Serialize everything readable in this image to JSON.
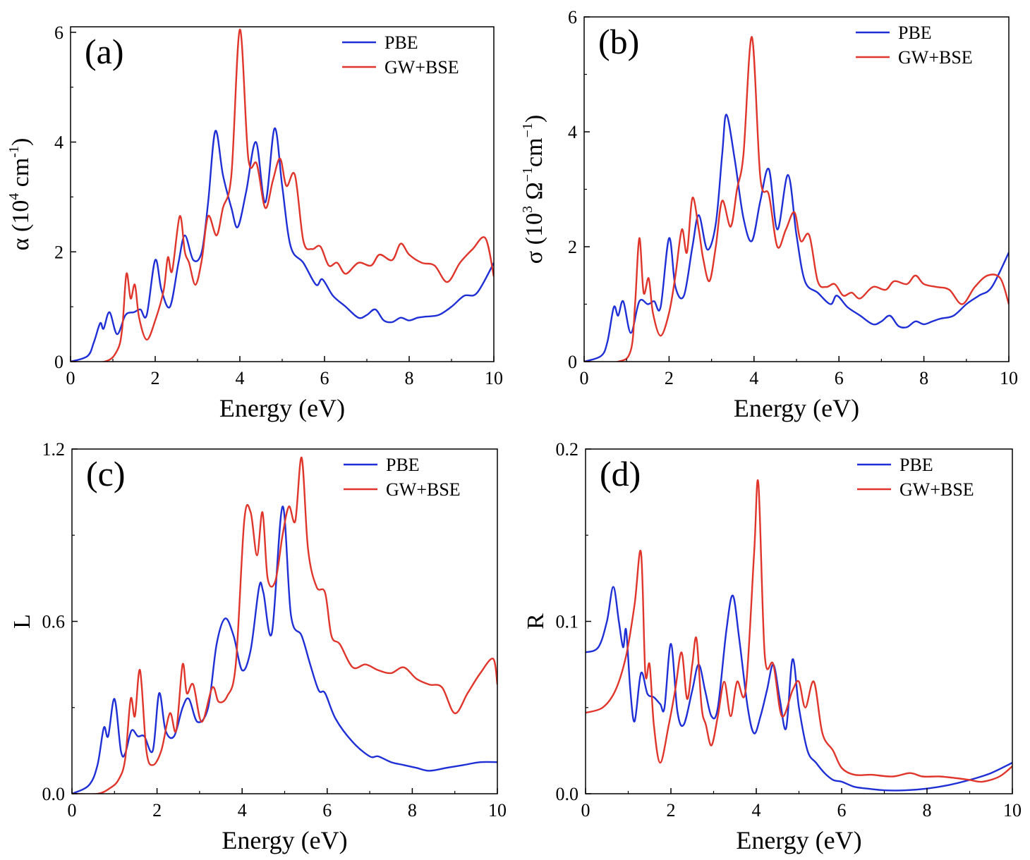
{
  "figure": {
    "x_label": "Energy (eV)"
  },
  "colors": {
    "PBE": "#1f2fd6",
    "GW+BSE": "#e0352b",
    "axis": "#000000"
  },
  "chart_data": [
    {
      "type": "line",
      "panel_label": "(a)",
      "ylabel_text": "α (10",
      "ylabel_sup": "4",
      "ylabel_unit": " cm",
      "ylabel_unit_sup": "-1",
      "ylabel_close": ")",
      "xlim": [
        0,
        10
      ],
      "ylim": [
        0,
        6.1
      ],
      "xticks": [
        0,
        2,
        4,
        6,
        8,
        10
      ],
      "xtick_labels": [
        "0",
        "2",
        "4",
        "6",
        "8",
        "10"
      ],
      "yticks": [
        0,
        2,
        4,
        6
      ],
      "ytick_labels": [
        "0",
        "2",
        "4",
        "6"
      ],
      "legend": [
        "PBE",
        "GW+BSE"
      ],
      "series": [
        {
          "name": "PBE",
          "x": [
            0,
            0.4,
            0.55,
            0.7,
            0.78,
            0.92,
            1.1,
            1.3,
            1.5,
            1.65,
            1.8,
            2.0,
            2.15,
            2.35,
            2.55,
            2.7,
            2.9,
            3.1,
            3.25,
            3.42,
            3.6,
            3.8,
            3.95,
            4.15,
            4.38,
            4.6,
            4.82,
            5.0,
            5.2,
            5.5,
            5.8,
            5.95,
            6.2,
            6.5,
            6.8,
            7.0,
            7.2,
            7.4,
            7.6,
            7.8,
            8.0,
            8.2,
            8.4,
            8.7,
            9.0,
            9.3,
            9.6,
            10.0
          ],
          "values": [
            0,
            0.1,
            0.35,
            0.7,
            0.6,
            0.9,
            0.5,
            0.85,
            0.9,
            0.95,
            0.85,
            1.85,
            1.3,
            1.0,
            1.8,
            2.3,
            1.85,
            2.0,
            2.9,
            4.2,
            3.4,
            2.8,
            2.45,
            3.1,
            4.0,
            2.9,
            4.25,
            3.2,
            2.1,
            1.8,
            1.4,
            1.5,
            1.2,
            1.0,
            0.8,
            0.85,
            0.95,
            0.75,
            0.72,
            0.8,
            0.75,
            0.8,
            0.82,
            0.85,
            1.0,
            1.2,
            1.25,
            1.8
          ]
        },
        {
          "name": "GW+BSE",
          "x": [
            0,
            0.8,
            1.1,
            1.22,
            1.32,
            1.42,
            1.52,
            1.62,
            1.8,
            2.0,
            2.2,
            2.3,
            2.4,
            2.58,
            2.7,
            2.8,
            2.95,
            3.1,
            3.25,
            3.45,
            3.6,
            3.8,
            4.0,
            4.2,
            4.4,
            4.6,
            4.78,
            4.95,
            5.1,
            5.3,
            5.5,
            5.7,
            5.9,
            6.1,
            6.3,
            6.5,
            6.8,
            7.1,
            7.3,
            7.6,
            7.8,
            8.0,
            8.3,
            8.6,
            8.9,
            9.2,
            9.5,
            9.8,
            10.0
          ],
          "values": [
            0,
            0,
            0.2,
            0.6,
            1.6,
            1.15,
            1.4,
            0.8,
            0.4,
            0.75,
            1.3,
            1.9,
            1.65,
            2.65,
            2.0,
            1.8,
            1.4,
            1.85,
            2.65,
            2.3,
            2.8,
            3.4,
            6.05,
            3.7,
            3.6,
            2.8,
            3.3,
            3.7,
            3.2,
            3.4,
            2.2,
            2.05,
            2.1,
            1.75,
            1.8,
            1.6,
            1.8,
            1.75,
            1.95,
            1.85,
            2.15,
            1.95,
            1.8,
            1.75,
            1.45,
            1.8,
            2.05,
            2.25,
            1.55
          ]
        }
      ]
    },
    {
      "type": "line",
      "panel_label": "(b)",
      "ylabel_text": "σ (10",
      "ylabel_sup": "3",
      "ylabel_unit": " Ω",
      "ylabel_unit_sup": "−1",
      "ylabel_unit2": "cm",
      "ylabel_unit2_sup": "−1",
      "ylabel_close": ")",
      "xlim": [
        0,
        10
      ],
      "ylim": [
        0,
        6
      ],
      "xticks": [
        0,
        2,
        4,
        6,
        8,
        10
      ],
      "xtick_labels": [
        "0",
        "2",
        "4",
        "6",
        "8",
        "10"
      ],
      "yticks": [
        0,
        2,
        4,
        6
      ],
      "ytick_labels": [
        "0",
        "2",
        "4",
        "6"
      ],
      "legend": [
        "PBE",
        "GW+BSE"
      ],
      "series": [
        {
          "name": "PBE",
          "x": [
            0,
            0.4,
            0.55,
            0.7,
            0.8,
            0.92,
            1.1,
            1.3,
            1.5,
            1.65,
            1.8,
            2.0,
            2.15,
            2.35,
            2.55,
            2.7,
            2.9,
            3.1,
            3.25,
            3.35,
            3.55,
            3.75,
            3.95,
            4.15,
            4.35,
            4.55,
            4.8,
            5.0,
            5.2,
            5.5,
            5.8,
            5.95,
            6.2,
            6.5,
            6.8,
            7.0,
            7.2,
            7.4,
            7.6,
            7.8,
            8.0,
            8.2,
            8.4,
            8.7,
            9.0,
            9.3,
            9.6,
            10.0
          ],
          "values": [
            0,
            0.1,
            0.35,
            0.95,
            0.8,
            1.05,
            0.5,
            1.05,
            1.0,
            1.05,
            0.95,
            2.15,
            1.3,
            1.15,
            2.0,
            2.55,
            1.95,
            2.4,
            3.6,
            4.3,
            3.5,
            2.5,
            2.1,
            2.8,
            3.35,
            2.3,
            3.25,
            2.2,
            1.4,
            1.2,
            1.0,
            1.15,
            0.95,
            0.8,
            0.65,
            0.7,
            0.8,
            0.62,
            0.6,
            0.7,
            0.65,
            0.7,
            0.75,
            0.8,
            1.0,
            1.15,
            1.3,
            1.9
          ]
        },
        {
          "name": "GW+BSE",
          "x": [
            0,
            0.8,
            1.1,
            1.2,
            1.3,
            1.4,
            1.52,
            1.62,
            1.8,
            2.0,
            2.15,
            2.3,
            2.42,
            2.55,
            2.7,
            2.8,
            2.95,
            3.1,
            3.25,
            3.45,
            3.6,
            3.75,
            3.95,
            4.15,
            4.35,
            4.55,
            4.75,
            4.95,
            5.1,
            5.3,
            5.5,
            5.7,
            5.9,
            6.1,
            6.3,
            6.5,
            6.8,
            7.1,
            7.3,
            7.6,
            7.8,
            8.0,
            8.3,
            8.6,
            8.9,
            9.2,
            9.5,
            9.8,
            10.0
          ],
          "values": [
            0,
            0,
            0.2,
            1.0,
            2.15,
            1.2,
            1.45,
            0.85,
            0.45,
            0.85,
            1.5,
            2.3,
            1.9,
            2.85,
            2.3,
            1.8,
            1.4,
            2.0,
            2.8,
            2.35,
            3.0,
            3.6,
            5.65,
            3.2,
            2.9,
            2.0,
            2.3,
            2.6,
            2.1,
            2.2,
            1.4,
            1.3,
            1.35,
            1.15,
            1.2,
            1.1,
            1.3,
            1.25,
            1.4,
            1.35,
            1.5,
            1.35,
            1.3,
            1.25,
            1.0,
            1.3,
            1.5,
            1.45,
            1.0
          ]
        }
      ]
    },
    {
      "type": "line",
      "panel_label": "(c)",
      "ylabel_text": "L",
      "xlim": [
        0,
        10
      ],
      "ylim": [
        0,
        1.2
      ],
      "xticks": [
        0,
        2,
        4,
        6,
        8,
        10
      ],
      "xtick_labels": [
        "0",
        "2",
        "4",
        "6",
        "8",
        "10"
      ],
      "yticks": [
        0,
        0.6,
        1.2
      ],
      "ytick_labels": [
        "0.0",
        "0.6",
        "1.2"
      ],
      "legend": [
        "PBE",
        "GW+BSE"
      ],
      "series": [
        {
          "name": "PBE",
          "x": [
            0,
            0.4,
            0.6,
            0.75,
            0.85,
            1.0,
            1.15,
            1.25,
            1.4,
            1.55,
            1.7,
            1.9,
            2.05,
            2.2,
            2.4,
            2.6,
            2.75,
            2.95,
            3.2,
            3.4,
            3.6,
            3.8,
            4.0,
            4.2,
            4.4,
            4.5,
            4.7,
            4.95,
            5.15,
            5.4,
            5.6,
            5.8,
            5.95,
            6.2,
            6.6,
            7.0,
            7.2,
            7.5,
            7.8,
            8.1,
            8.4,
            8.8,
            9.2,
            9.6,
            10.0
          ],
          "values": [
            0,
            0.03,
            0.1,
            0.23,
            0.2,
            0.33,
            0.15,
            0.14,
            0.22,
            0.2,
            0.2,
            0.15,
            0.35,
            0.22,
            0.2,
            0.3,
            0.33,
            0.25,
            0.3,
            0.52,
            0.61,
            0.55,
            0.43,
            0.5,
            0.72,
            0.7,
            0.56,
            1.0,
            0.62,
            0.55,
            0.45,
            0.36,
            0.35,
            0.26,
            0.18,
            0.13,
            0.13,
            0.11,
            0.1,
            0.09,
            0.08,
            0.09,
            0.1,
            0.11,
            0.11
          ]
        },
        {
          "name": "GW+BSE",
          "x": [
            0,
            0.6,
            0.9,
            1.1,
            1.25,
            1.38,
            1.48,
            1.6,
            1.75,
            1.9,
            2.1,
            2.3,
            2.45,
            2.6,
            2.7,
            2.85,
            3.05,
            3.3,
            3.45,
            3.65,
            3.85,
            4.05,
            4.2,
            4.35,
            4.48,
            4.6,
            4.78,
            4.95,
            5.1,
            5.25,
            5.4,
            5.55,
            5.75,
            5.95,
            6.1,
            6.3,
            6.6,
            6.9,
            7.2,
            7.5,
            7.8,
            8.1,
            8.4,
            8.7,
            9.0,
            9.3,
            9.6,
            9.9,
            10.0
          ],
          "values": [
            0,
            0,
            0.02,
            0.05,
            0.12,
            0.33,
            0.27,
            0.43,
            0.15,
            0.1,
            0.15,
            0.28,
            0.22,
            0.45,
            0.35,
            0.38,
            0.25,
            0.37,
            0.32,
            0.34,
            0.45,
            0.95,
            0.98,
            0.83,
            0.98,
            0.75,
            0.74,
            0.9,
            1.0,
            0.95,
            1.17,
            0.85,
            0.72,
            0.7,
            0.55,
            0.52,
            0.44,
            0.45,
            0.43,
            0.42,
            0.44,
            0.4,
            0.38,
            0.37,
            0.28,
            0.35,
            0.42,
            0.47,
            0.38
          ]
        }
      ]
    },
    {
      "type": "line",
      "panel_label": "(d)",
      "ylabel_text": "R",
      "xlim": [
        0,
        10
      ],
      "ylim": [
        0,
        0.2
      ],
      "xticks": [
        0,
        2,
        4,
        6,
        8,
        10
      ],
      "xtick_labels": [
        "0",
        "2",
        "4",
        "6",
        "8",
        "10"
      ],
      "yticks": [
        0,
        0.1,
        0.2
      ],
      "ytick_labels": [
        "0.0",
        "0.1",
        "0.2"
      ],
      "legend": [
        "PBE",
        "GW+BSE"
      ],
      "series": [
        {
          "name": "PBE",
          "x": [
            0,
            0.3,
            0.5,
            0.65,
            0.78,
            0.88,
            0.95,
            1.05,
            1.15,
            1.3,
            1.45,
            1.6,
            1.75,
            1.85,
            2.0,
            2.15,
            2.3,
            2.5,
            2.65,
            2.8,
            2.95,
            3.1,
            3.3,
            3.45,
            3.6,
            3.8,
            3.95,
            4.1,
            4.25,
            4.4,
            4.55,
            4.7,
            4.85,
            5.0,
            5.2,
            5.4,
            5.6,
            5.8,
            6.0,
            6.3,
            6.6,
            7.0,
            7.5,
            8.0,
            8.5,
            9.0,
            9.5,
            10.0
          ],
          "values": [
            0.082,
            0.085,
            0.1,
            0.12,
            0.1,
            0.085,
            0.095,
            0.06,
            0.042,
            0.07,
            0.058,
            0.056,
            0.052,
            0.05,
            0.087,
            0.048,
            0.04,
            0.06,
            0.075,
            0.06,
            0.045,
            0.05,
            0.095,
            0.115,
            0.09,
            0.05,
            0.035,
            0.045,
            0.06,
            0.075,
            0.055,
            0.038,
            0.078,
            0.05,
            0.025,
            0.018,
            0.012,
            0.008,
            0.007,
            0.004,
            0.003,
            0.002,
            0.002,
            0.003,
            0.005,
            0.008,
            0.012,
            0.018
          ]
        },
        {
          "name": "GW+BSE",
          "x": [
            0,
            0.4,
            0.7,
            0.95,
            1.15,
            1.3,
            1.4,
            1.5,
            1.6,
            1.75,
            1.95,
            2.1,
            2.25,
            2.38,
            2.5,
            2.6,
            2.72,
            2.82,
            2.95,
            3.1,
            3.25,
            3.4,
            3.55,
            3.75,
            3.95,
            4.05,
            4.2,
            4.4,
            4.6,
            4.85,
            5.0,
            5.15,
            5.35,
            5.55,
            5.8,
            6.0,
            6.3,
            6.7,
            7.2,
            7.6,
            7.9,
            8.3,
            8.7,
            9.0,
            9.3,
            9.7,
            10.0
          ],
          "values": [
            0.047,
            0.05,
            0.06,
            0.08,
            0.11,
            0.14,
            0.07,
            0.075,
            0.04,
            0.018,
            0.04,
            0.06,
            0.082,
            0.055,
            0.075,
            0.09,
            0.05,
            0.04,
            0.028,
            0.045,
            0.065,
            0.045,
            0.065,
            0.06,
            0.14,
            0.18,
            0.08,
            0.075,
            0.045,
            0.06,
            0.065,
            0.05,
            0.065,
            0.035,
            0.025,
            0.015,
            0.011,
            0.011,
            0.01,
            0.012,
            0.01,
            0.01,
            0.009,
            0.008,
            0.007,
            0.01,
            0.016
          ]
        }
      ]
    }
  ]
}
